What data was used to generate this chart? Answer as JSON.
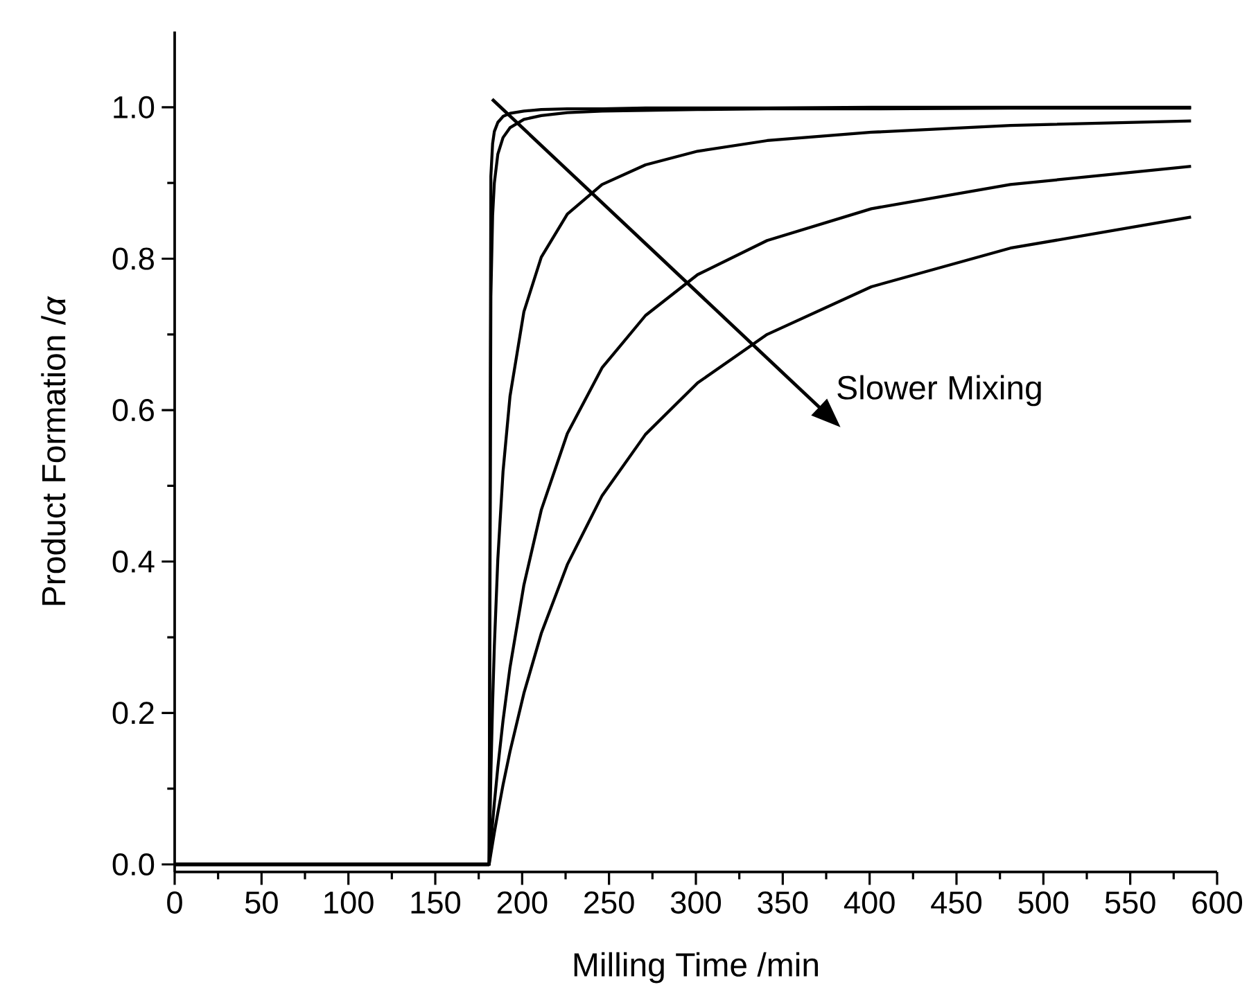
{
  "chart_data": {
    "type": "line",
    "xlabel": "Milling Time /min",
    "ylabel": "Product Formation /*α*",
    "xlim": [
      0,
      600
    ],
    "ylim": [
      -0.01,
      1.1
    ],
    "xticks": [
      0,
      50,
      100,
      150,
      200,
      250,
      300,
      350,
      400,
      450,
      500,
      550,
      600
    ],
    "yticks": [
      {
        "value": 0,
        "label": "0.0"
      },
      {
        "value": 0.2,
        "label": "0.2"
      },
      {
        "value": 0.4,
        "label": "0.4"
      },
      {
        "value": 0.6,
        "label": "0.6"
      },
      {
        "value": 0.8,
        "label": "0.8"
      },
      {
        "value": 1.0,
        "label": "1.0"
      }
    ],
    "x": [
      0,
      181,
      182,
      183,
      184,
      186,
      189,
      193,
      201,
      211,
      226,
      246,
      271,
      301,
      341,
      401,
      481,
      585
    ],
    "grid": false,
    "marker": "none",
    "line_style": "solid",
    "annotations": [
      "Slower Mixing"
    ],
    "series": [
      {
        "color": "#000000",
        "values": [
          0,
          0,
          0.909,
          0.952,
          0.968,
          0.98,
          0.988,
          0.992,
          0.995,
          0.997,
          0.998,
          0.998,
          0.999,
          0.999,
          0.999,
          1.0,
          1.0,
          1.0
        ]
      },
      {
        "color": "#000000",
        "values": [
          0,
          0,
          0.75,
          0.857,
          0.9,
          0.938,
          0.96,
          0.973,
          0.984,
          0.989,
          0.993,
          0.995,
          0.996,
          0.997,
          0.998,
          0.998,
          0.999,
          0.999
        ]
      },
      {
        "color": "#000000",
        "values": [
          0,
          0,
          0.119,
          0.213,
          0.288,
          0.403,
          0.519,
          0.618,
          0.73,
          0.802,
          0.859,
          0.898,
          0.924,
          0.942,
          0.956,
          0.967,
          0.976,
          0.982
        ]
      },
      {
        "color": "#000000",
        "values": [
          0,
          0,
          0.028,
          0.055,
          0.081,
          0.128,
          0.19,
          0.26,
          0.369,
          0.468,
          0.569,
          0.656,
          0.725,
          0.779,
          0.824,
          0.866,
          0.898,
          0.922
        ]
      },
      {
        "color": "#000000",
        "values": [
          0,
          0,
          0.014,
          0.028,
          0.042,
          0.068,
          0.105,
          0.149,
          0.226,
          0.305,
          0.396,
          0.487,
          0.568,
          0.636,
          0.7,
          0.763,
          0.814,
          0.855
        ]
      }
    ]
  }
}
